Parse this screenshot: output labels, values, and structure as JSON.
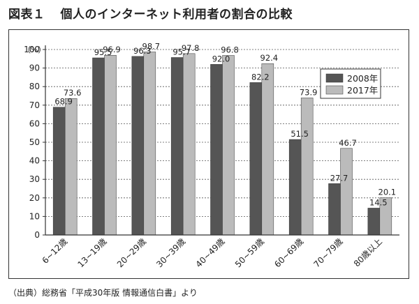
{
  "figure": {
    "label": "図表１",
    "title": "個人のインターネット利用者の割合の比較",
    "source": "（出典）総務省「平成30年版 情報通信白書」より"
  },
  "chart_data": {
    "type": "bar",
    "y_unit_label": "（%）",
    "ylim": [
      0,
      100
    ],
    "yticks": [
      0,
      10,
      20,
      30,
      40,
      50,
      60,
      70,
      80,
      90,
      100
    ],
    "grid": true,
    "legend_position": "right",
    "categories": [
      "6~12歳",
      "13~19歳",
      "20~29歳",
      "30~39歳",
      "40~49歳",
      "50~59歳",
      "60~69歳",
      "70~79歳",
      "80歳以上"
    ],
    "series": [
      {
        "name": "2008年",
        "color": "#555555",
        "values": [
          68.9,
          95.5,
          96.3,
          95.7,
          92.0,
          82.2,
          51.5,
          27.7,
          14.5
        ]
      },
      {
        "name": "2017年",
        "color": "#bbbbbb",
        "values": [
          73.6,
          96.9,
          98.7,
          97.8,
          96.8,
          92.4,
          73.9,
          46.7,
          20.1
        ]
      }
    ]
  }
}
